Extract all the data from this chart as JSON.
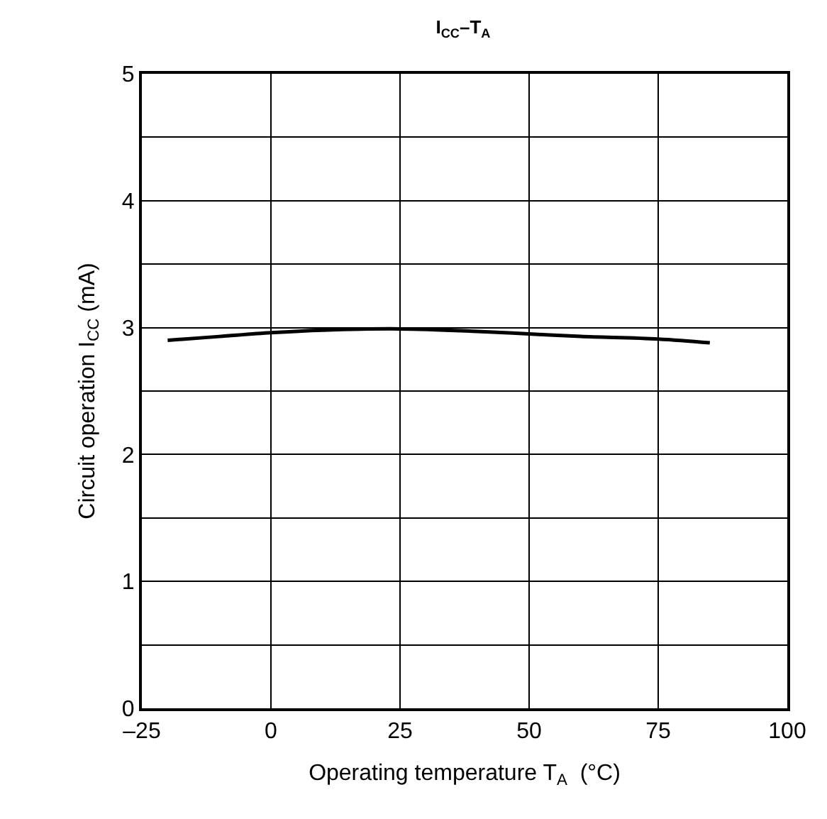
{
  "chart_data": {
    "type": "line",
    "title": "I$_{CC}$–T$_{A}$",
    "xlabel": "Operating temperature T$_{A}$  (°C)",
    "ylabel": "Circuit operation I$_{CC}$ (mA)",
    "x": [
      -20,
      -10,
      0,
      10,
      25,
      40,
      50,
      60,
      75,
      85
    ],
    "series": [
      {
        "color": "#000000",
        "values": [
          2.9,
          2.93,
          2.96,
          2.98,
          2.99,
          2.97,
          2.95,
          2.93,
          2.91,
          2.88
        ]
      }
    ],
    "xlim": [
      -25,
      100
    ],
    "xticks": [
      {
        "value": -25,
        "label": "–25"
      },
      0,
      25,
      50,
      75,
      100
    ],
    "ylim": [
      0,
      5
    ],
    "yticks": [
      0,
      {
        "value": 0.5,
        "label": null
      },
      1,
      {
        "value": 1.5,
        "label": null
      },
      2,
      {
        "value": 2.5,
        "label": null
      },
      3,
      {
        "value": 3.5,
        "label": null
      },
      4,
      {
        "value": 4.5,
        "label": null
      },
      5
    ],
    "grid": true,
    "legend": false,
    "marker": "none",
    "line_style": "solid"
  }
}
